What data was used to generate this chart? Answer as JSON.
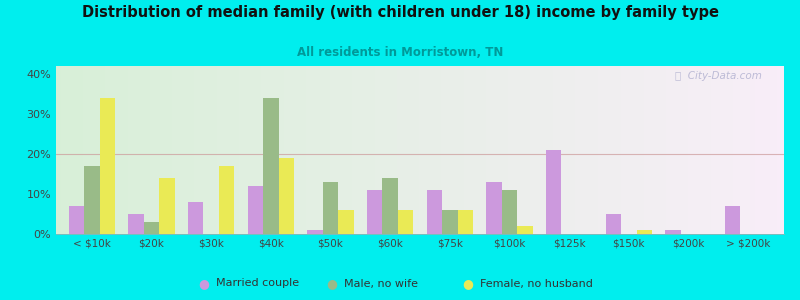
{
  "title": "Distribution of median family (with children under 18) income by family type",
  "subtitle": "All residents in Morristown, TN",
  "categories": [
    "< $10k",
    "$20k",
    "$30k",
    "$40k",
    "$50k",
    "$60k",
    "$75k",
    "$100k",
    "$125k",
    "$150k",
    "$200k",
    "> $200k"
  ],
  "married_couple": [
    7,
    5,
    8,
    12,
    1,
    11,
    11,
    13,
    21,
    5,
    1,
    7
  ],
  "male_no_wife": [
    17,
    3,
    0,
    34,
    13,
    14,
    6,
    11,
    0,
    0,
    0,
    0
  ],
  "female_no_husb": [
    34,
    14,
    17,
    19,
    6,
    6,
    6,
    2,
    0,
    1,
    0,
    0
  ],
  "colors": {
    "married_couple": "#cc99dd",
    "male_no_wife": "#99bb88",
    "female_no_husb": "#eaea55"
  },
  "bg_color": "#00eeee",
  "ylim": [
    0,
    42
  ],
  "yticks": [
    0,
    10,
    20,
    30,
    40
  ],
  "ytick_labels": [
    "0%",
    "10%",
    "20%",
    "30%",
    "40%"
  ],
  "legend_labels": [
    "Married couple",
    "Male, no wife",
    "Female, no husband"
  ],
  "watermark": "ⓘ  City-Data.com"
}
